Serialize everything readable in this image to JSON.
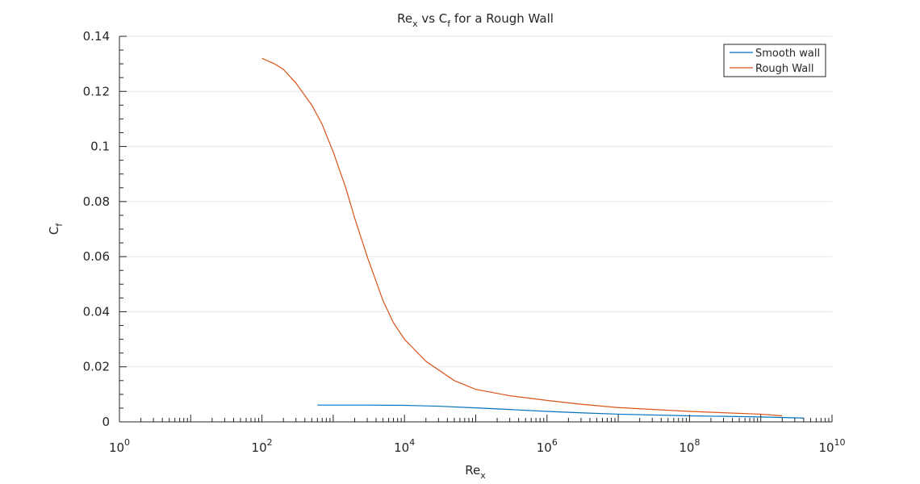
{
  "chart_data": {
    "type": "line",
    "title": {
      "base": "Re",
      "sub1": "x",
      "mid": " vs C",
      "sub2": "f",
      "tail": " for a Rough Wall"
    },
    "xlabel": {
      "base": "Re",
      "sub": "x"
    },
    "ylabel": {
      "base": "C",
      "sub": "f"
    },
    "x_scale": "log",
    "xlim": [
      1,
      10000000000
    ],
    "ylim": [
      0,
      0.14
    ],
    "x_ticks": [
      {
        "base": "10",
        "exp": "0",
        "value": 1
      },
      {
        "base": "10",
        "exp": "2",
        "value": 100
      },
      {
        "base": "10",
        "exp": "4",
        "value": 10000
      },
      {
        "base": "10",
        "exp": "6",
        "value": 1000000
      },
      {
        "base": "10",
        "exp": "8",
        "value": 100000000
      },
      {
        "base": "10",
        "exp": "10",
        "value": 10000000000
      }
    ],
    "y_ticks": [
      {
        "label": "0",
        "value": 0
      },
      {
        "label": "0.02",
        "value": 0.02
      },
      {
        "label": "0.04",
        "value": 0.04
      },
      {
        "label": "0.06",
        "value": 0.06
      },
      {
        "label": "0.08",
        "value": 0.08
      },
      {
        "label": "0.1",
        "value": 0.1
      },
      {
        "label": "0.12",
        "value": 0.12
      },
      {
        "label": "0.14",
        "value": 0.14
      }
    ],
    "grid": "horizontal",
    "legend": "top-right",
    "series": [
      {
        "name": "Smooth wall",
        "color": "#0072BD",
        "x": [
          600,
          1000,
          3000,
          10000,
          30000,
          100000,
          300000,
          1000000,
          3000000,
          10000000,
          100000000,
          1000000000,
          4000000000
        ],
        "y": [
          0.0061,
          0.0061,
          0.0061,
          0.006,
          0.0057,
          0.0051,
          0.0045,
          0.0038,
          0.0033,
          0.0028,
          0.0022,
          0.0018,
          0.0014
        ]
      },
      {
        "name": "Rough Wall",
        "color": "#D95319",
        "x": [
          100,
          150,
          200,
          300,
          500,
          700,
          1000,
          1500,
          2000,
          3000,
          5000,
          7000,
          10000,
          20000,
          50000,
          100000,
          300000,
          1000000,
          3000000,
          10000000,
          100000000,
          1000000000,
          2000000000
        ],
        "y": [
          0.132,
          0.13,
          0.128,
          0.123,
          0.115,
          0.108,
          0.098,
          0.085,
          0.074,
          0.06,
          0.044,
          0.036,
          0.03,
          0.022,
          0.015,
          0.0118,
          0.0095,
          0.0078,
          0.0064,
          0.0052,
          0.0038,
          0.0028,
          0.0022
        ]
      }
    ]
  }
}
